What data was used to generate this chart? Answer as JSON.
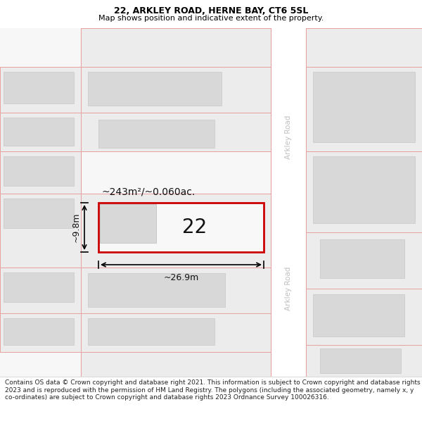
{
  "title": "22, ARKLEY ROAD, HERNE BAY, CT6 5SL",
  "subtitle": "Map shows position and indicative extent of the property.",
  "footer": "Contains OS data © Crown copyright and database right 2021. This information is subject to Crown copyright and database rights 2023 and is reproduced with the permission of HM Land Registry. The polygons (including the associated geometry, namely x, y co-ordinates) are subject to Crown copyright and database rights 2023 Ordnance Survey 100026316.",
  "area_label": "~243m²/~0.060ac.",
  "width_label": "~26.9m",
  "height_label": "~9.8m",
  "number_label": "22",
  "road_label_top": "Arkley Road",
  "road_label_bottom": "Arkley Road",
  "bg_color": "#ffffff",
  "map_bg": "#f7f7f7",
  "road_bg": "#ffffff",
  "plot_outline": "#e8a0a0",
  "highlight_outline": "#cc0000",
  "building_fill": "#d8d8d8",
  "plot_fill": "#ececec",
  "road_line_color": "#e8a0a0",
  "footer_color": "#222222",
  "title_fontsize": 9,
  "subtitle_fontsize": 8,
  "footer_fontsize": 6.5
}
